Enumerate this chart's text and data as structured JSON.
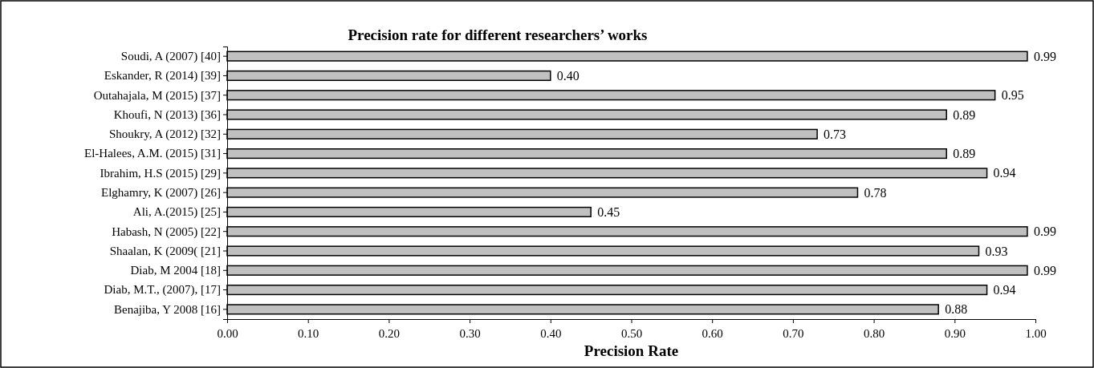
{
  "chart_data": {
    "type": "bar",
    "orientation": "horizontal",
    "title": "Precision rate for different researchers’ works",
    "xlabel": "Precision Rate",
    "categories": [
      "Soudi, A (2007) [40]",
      "Eskander, R (2014) [39]",
      "Outahajala, M (2015) [37]",
      "Khoufi, N (2013) [36]",
      "Shoukry, A (2012) [32]",
      "El-Halees, A.M. (2015) [31]",
      "Ibrahim, H.S (2015) [29]",
      "Elghamry, K (2007) [26]",
      "Ali, A.(2015) [25]",
      "Habash, N (2005) [22]",
      "Shaalan, K (2009( [21]",
      "Diab, M 2004 [18]",
      "Diab, M.T., (2007), [17]",
      "Benajiba, Y 2008 [16]"
    ],
    "values": [
      0.99,
      0.4,
      0.95,
      0.89,
      0.73,
      0.89,
      0.94,
      0.78,
      0.45,
      0.99,
      0.93,
      0.99,
      0.94,
      0.88
    ],
    "value_labels": [
      "0.99",
      "0.40",
      "0.95",
      "0.89",
      "0.73",
      "0.89",
      "0.94",
      "0.78",
      "0.45",
      "0.99",
      "0.93",
      "0.99",
      "0.94",
      "0.88"
    ],
    "color": "#c0c0c0",
    "xlim": [
      0,
      1
    ],
    "xticks": [
      {
        "value": 0,
        "label": "0.00"
      },
      {
        "value": 0.1,
        "label": "0.10"
      },
      {
        "value": 0.2,
        "label": "0.20"
      },
      {
        "value": 0.3,
        "label": "0.30"
      },
      {
        "value": 0.4,
        "label": "0.40"
      },
      {
        "value": 0.5,
        "label": "0.50"
      },
      {
        "value": 0.6,
        "label": "0.60"
      },
      {
        "value": 0.7,
        "label": "0.70"
      },
      {
        "value": 0.8,
        "label": "0.80"
      },
      {
        "value": 0.9,
        "label": "0.90"
      },
      {
        "value": 1,
        "label": "1.00"
      }
    ]
  }
}
